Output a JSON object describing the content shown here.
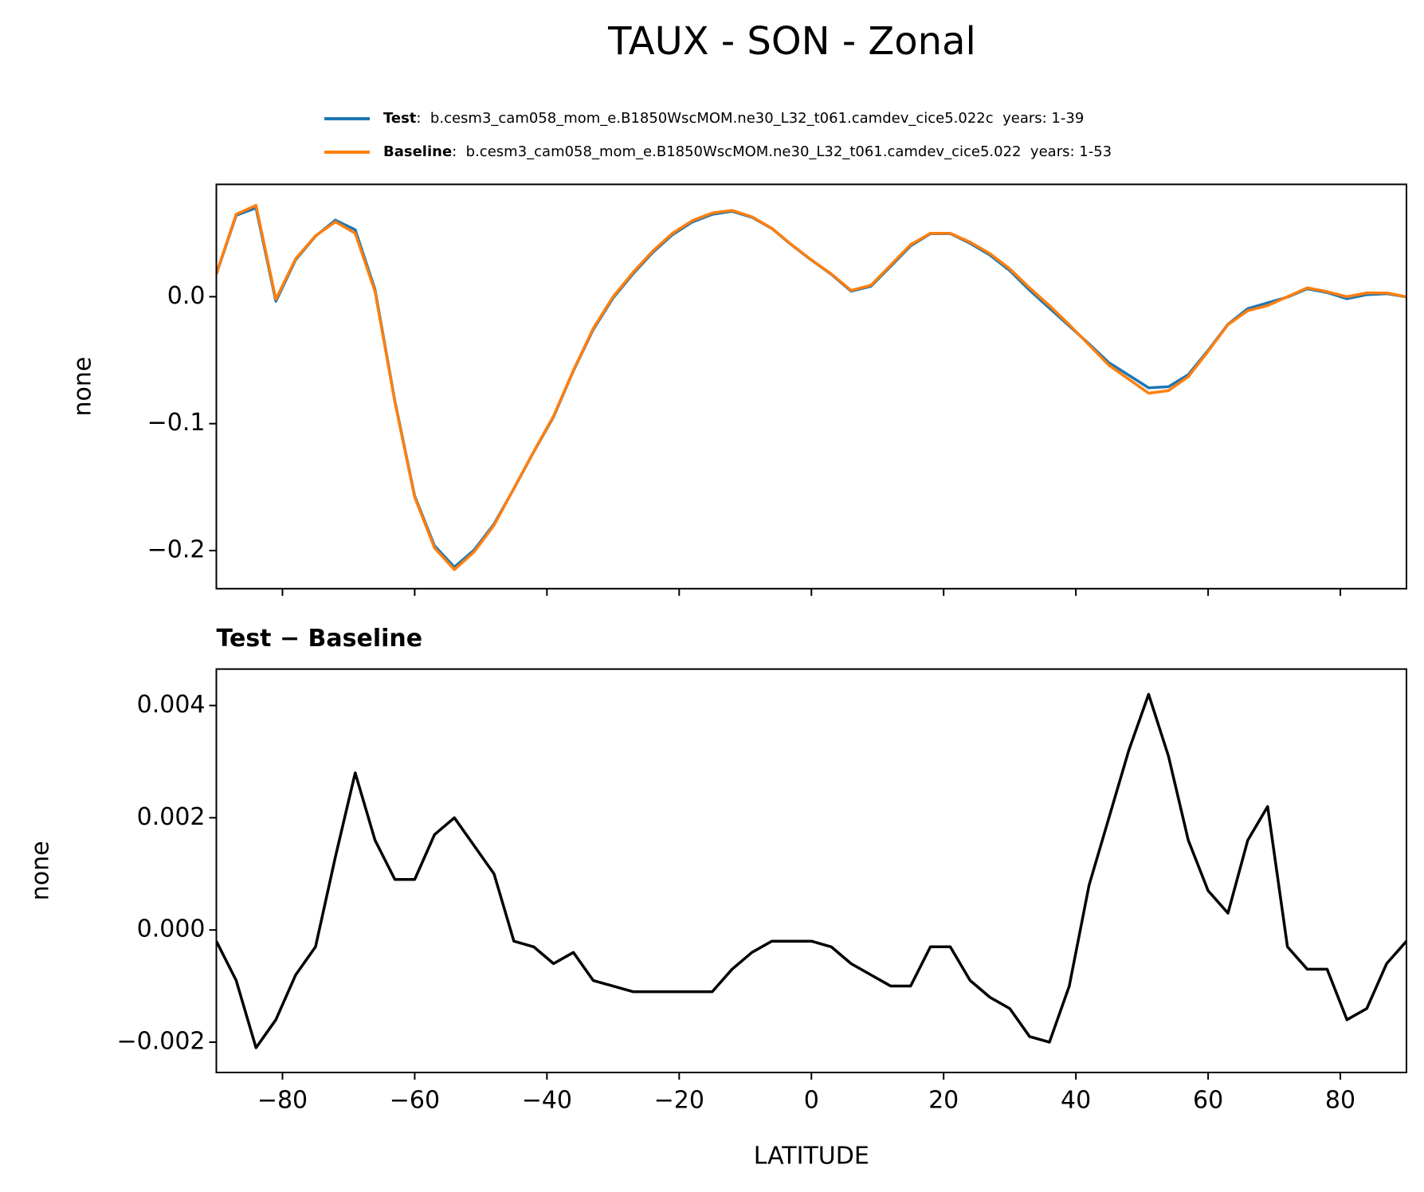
{
  "title": "TAUX - SON - Zonal",
  "chart_data": [
    {
      "type": "line",
      "ylabel": "none",
      "x": [
        -90,
        -87,
        -84,
        -81,
        -78,
        -75,
        -72,
        -69,
        -66,
        -63,
        -60,
        -57,
        -54,
        -51,
        -48,
        -45,
        -42,
        -39,
        -36,
        -33,
        -30,
        -27,
        -24,
        -21,
        -18,
        -15,
        -12,
        -9,
        -6,
        -3,
        0,
        3,
        6,
        9,
        12,
        15,
        18,
        21,
        24,
        27,
        30,
        33,
        36,
        39,
        42,
        45,
        48,
        51,
        54,
        57,
        60,
        63,
        66,
        69,
        72,
        75,
        78,
        81,
        84,
        87,
        90
      ],
      "series": [
        {
          "name": "Test",
          "description": ":  b.cesm3_cam058_mom_e.B1850WscMOM.ne30_L32_t061.camdev_cice5.022c  years: 1-39",
          "color": "#1f77b4",
          "values": [
            0.0178,
            0.0641,
            0.0699,
            -0.0036,
            0.0292,
            0.0477,
            0.0603,
            0.0528,
            0.0056,
            -0.0821,
            -0.1571,
            -0.1963,
            -0.213,
            -0.1995,
            -0.179,
            -0.1512,
            -0.1223,
            -0.0946,
            -0.0584,
            -0.0259,
            -0.001,
            0.0179,
            0.0349,
            0.0489,
            0.0589,
            0.0649,
            0.0673,
            0.0626,
            0.0538,
            0.0408,
            0.0288,
            0.0177,
            0.0044,
            0.0082,
            0.024,
            0.04,
            0.0497,
            0.0497,
            0.0421,
            0.0328,
            0.0206,
            0.0051,
            -0.009,
            -0.023,
            -0.0372,
            -0.052,
            -0.0618,
            -0.0718,
            -0.0709,
            -0.0614,
            -0.0423,
            -0.0217,
            -0.0094,
            -0.0048,
            -0.0003,
            0.0063,
            0.0033,
            -0.0016,
            0.0016,
            0.0024,
            -0.0002
          ]
        },
        {
          "name": "Baseline",
          "description": ":  b.cesm3_cam058_mom_e.B1850WscMOM.ne30_L32_t061.camdev_cice5.022  years: 1-53",
          "color": "#ff7f0e",
          "values": [
            0.018,
            0.065,
            0.072,
            -0.002,
            0.03,
            0.048,
            0.059,
            0.05,
            0.004,
            -0.083,
            -0.158,
            -0.198,
            -0.215,
            -0.201,
            -0.18,
            -0.151,
            -0.122,
            -0.094,
            -0.058,
            -0.025,
            0.0,
            0.019,
            0.036,
            0.05,
            0.06,
            0.066,
            0.068,
            0.063,
            0.054,
            0.041,
            0.029,
            0.018,
            0.005,
            0.009,
            0.025,
            0.041,
            0.05,
            0.05,
            0.043,
            0.034,
            0.022,
            0.007,
            -0.007,
            -0.022,
            -0.038,
            -0.054,
            -0.065,
            -0.076,
            -0.074,
            -0.063,
            -0.043,
            -0.022,
            -0.011,
            -0.007,
            0.0,
            0.007,
            0.004,
            0.0,
            0.003,
            0.003,
            0.0
          ]
        }
      ],
      "xlim": [
        -90,
        90
      ],
      "xticks": [
        -80,
        -60,
        -40,
        -20,
        0,
        20,
        40,
        60,
        80
      ],
      "show_xticklabels": false,
      "ylim": [
        -0.23,
        0.0885
      ],
      "yticks": [
        {
          "value": -0.2,
          "label": "−0.2"
        },
        {
          "value": -0.1,
          "label": "−0.1"
        },
        {
          "value": 0,
          "label": "0.0"
        }
      ],
      "legend": true
    },
    {
      "type": "line",
      "title": "Test − Baseline",
      "xlabel": "LATITUDE",
      "ylabel": "none",
      "color": "#000000",
      "x": [
        -90,
        -87,
        -84,
        -81,
        -78,
        -75,
        -72,
        -69,
        -66,
        -63,
        -60,
        -57,
        -54,
        -51,
        -48,
        -45,
        -42,
        -39,
        -36,
        -33,
        -30,
        -27,
        -24,
        -21,
        -18,
        -15,
        -12,
        -9,
        -6,
        -3,
        0,
        3,
        6,
        9,
        12,
        15,
        18,
        21,
        24,
        27,
        30,
        33,
        36,
        39,
        42,
        45,
        48,
        51,
        54,
        57,
        60,
        63,
        66,
        69,
        72,
        75,
        78,
        81,
        84,
        87,
        90
      ],
      "values": [
        -0.0002,
        -0.0009,
        -0.0021,
        -0.0016,
        -0.0008,
        -0.0003,
        0.0013,
        0.0028,
        0.0016,
        0.0009,
        0.0009,
        0.0017,
        0.002,
        0.0015,
        0.001,
        -0.0002,
        -0.0003,
        -0.0006,
        -0.0004,
        -0.0009,
        -0.001,
        -0.0011,
        -0.0011,
        -0.0011,
        -0.0011,
        -0.0011,
        -0.0007,
        -0.0004,
        -0.0002,
        -0.0002,
        -0.0002,
        -0.0003,
        -0.0006,
        -0.0008,
        -0.001,
        -0.001,
        -0.0003,
        -0.0003,
        -0.0009,
        -0.0012,
        -0.0014,
        -0.0019,
        -0.002,
        -0.001,
        0.0008,
        0.002,
        0.0032,
        0.0042,
        0.0031,
        0.0016,
        0.0007,
        0.0003,
        0.0016,
        0.0022,
        -0.0003,
        -0.0007,
        -0.0007,
        -0.0016,
        -0.0014,
        -0.0006,
        -0.0002
      ],
      "xlim": [
        -90,
        90
      ],
      "xticks": [
        {
          "value": -80,
          "label": "−80"
        },
        {
          "value": -60,
          "label": "−60"
        },
        {
          "value": -40,
          "label": "−40"
        },
        {
          "value": -20,
          "label": "−20"
        },
        0,
        20,
        40,
        60,
        80
      ],
      "show_xticklabels": true,
      "ylim": [
        -0.00254,
        0.00465
      ],
      "yticks": [
        {
          "value": -0.002,
          "label": "−0.002"
        },
        {
          "value": 0,
          "label": "0.000"
        },
        0.002,
        0.004
      ]
    }
  ]
}
